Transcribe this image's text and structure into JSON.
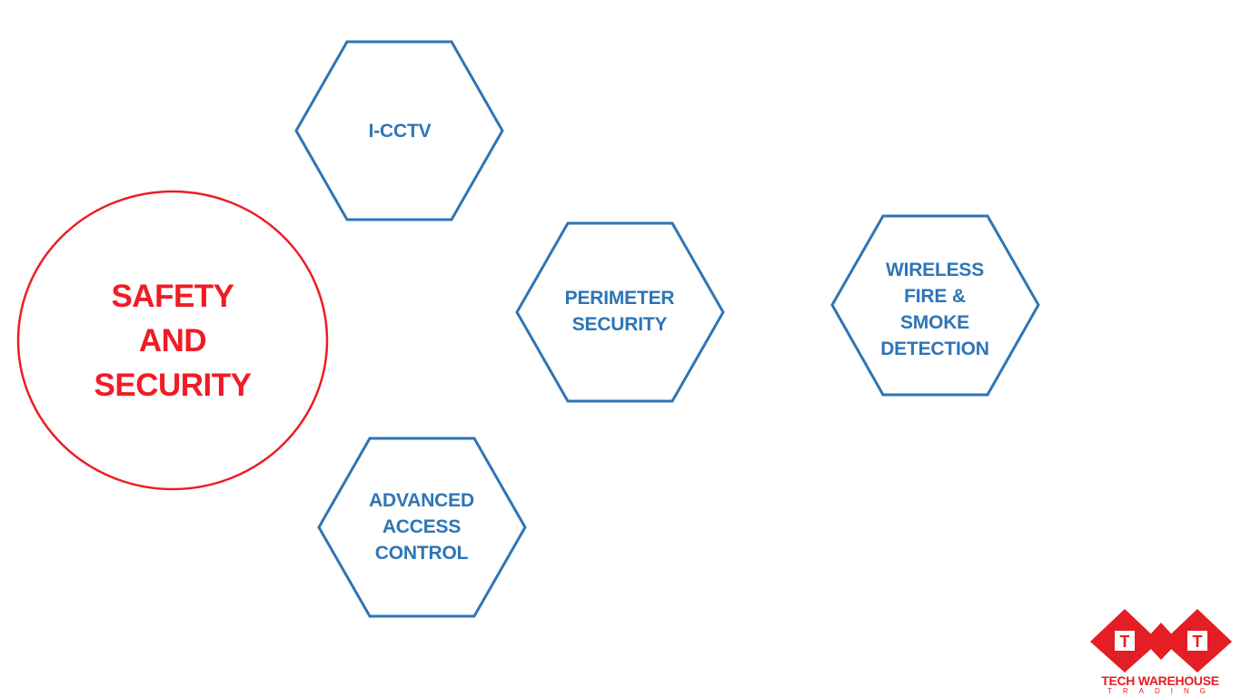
{
  "diagram": {
    "title": {
      "lines": [
        "SAFETY",
        "AND",
        "SECURITY"
      ],
      "color": "#ee1c25"
    },
    "nodes": [
      {
        "id": "i-cctv",
        "lines": [
          "I-CCTV"
        ]
      },
      {
        "id": "perimeter-security",
        "lines": [
          "PERIMETER",
          "SECURITY"
        ]
      },
      {
        "id": "wireless-fire-smoke",
        "lines": [
          "WIRELESS",
          "FIRE &",
          "SMOKE",
          "DETECTION"
        ]
      },
      {
        "id": "advanced-access-control",
        "lines": [
          "ADVANCED",
          "ACCESS",
          "CONTROL"
        ]
      }
    ],
    "node_color": "#2e75b6"
  },
  "logo": {
    "letters": [
      "T",
      "T"
    ],
    "title": "TECH WAREHOUSE",
    "subtitle": "TRADING",
    "color": "#e31e24"
  }
}
